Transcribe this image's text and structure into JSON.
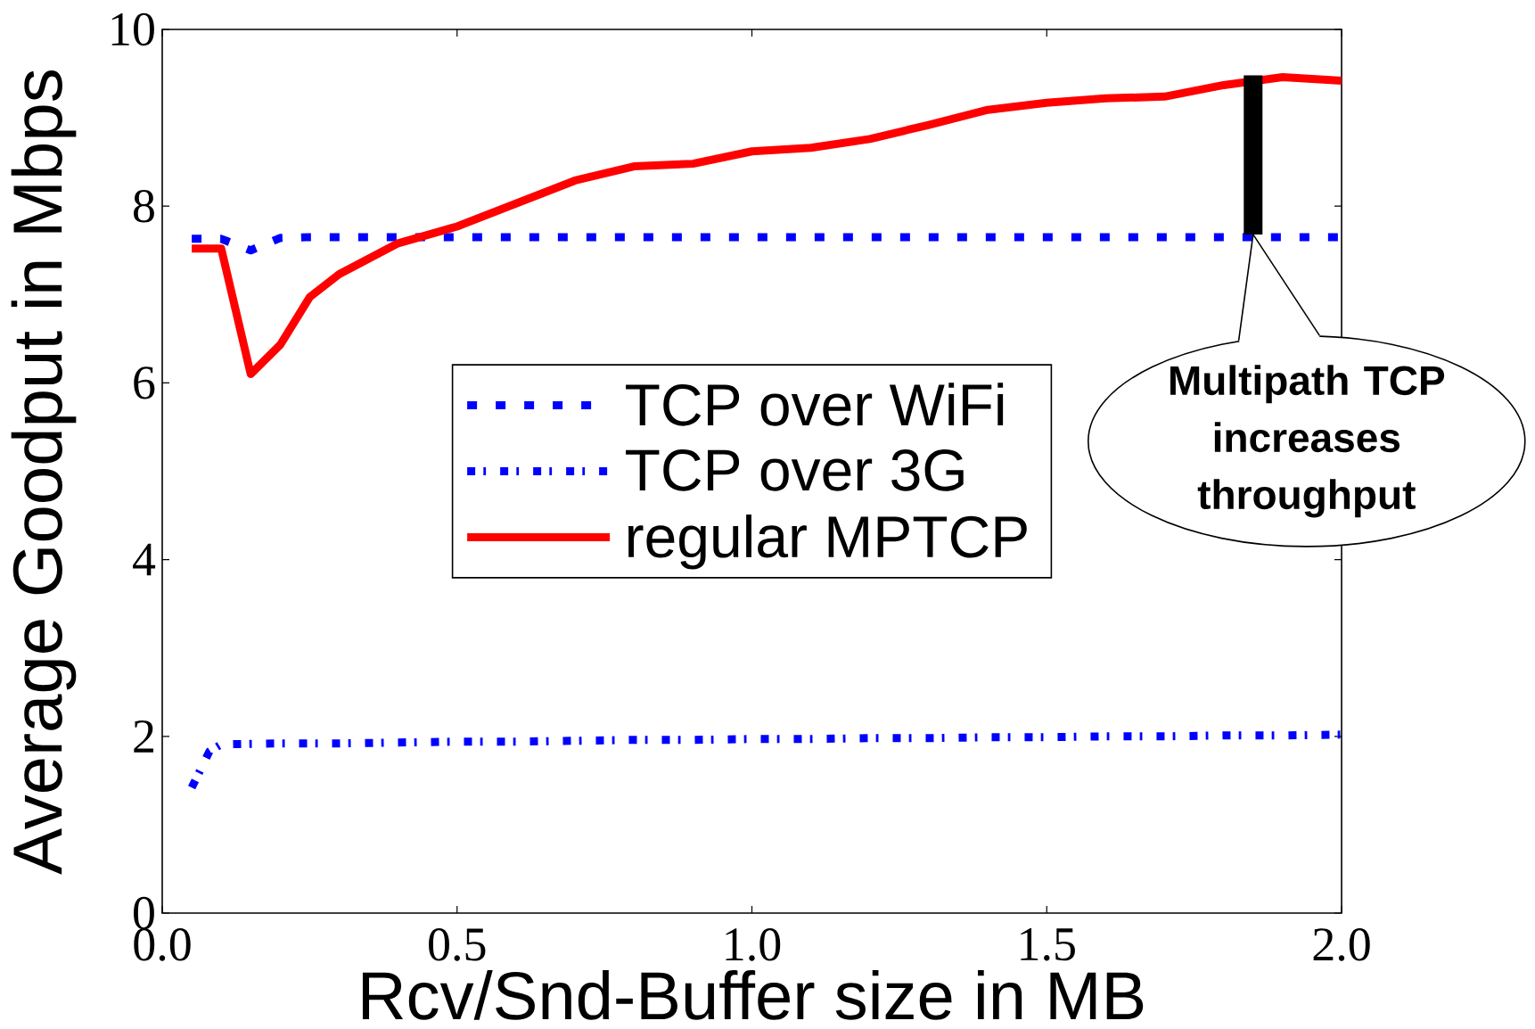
{
  "chart_data": {
    "type": "line",
    "xlabel": "Rcv/Snd-Buffer size in MB",
    "ylabel": "Average Goodput in Mbps",
    "xlim": [
      0,
      2
    ],
    "ylim": [
      0,
      10
    ],
    "xticks": [
      {
        "value": 0,
        "label": "0.0"
      },
      {
        "value": 0.5,
        "label": "0.5"
      },
      {
        "value": 1,
        "label": "1.0"
      },
      {
        "value": 1.5,
        "label": "1.5"
      },
      {
        "value": 2,
        "label": "2.0"
      }
    ],
    "yticks": [
      0,
      2,
      4,
      6,
      8,
      10
    ],
    "legend": "center",
    "series": [
      {
        "name": "TCP over WiFi",
        "color": "#0000ff",
        "line_style": "dashed",
        "x": [
          0.05,
          0.1,
          0.15,
          0.2,
          0.25,
          0.3,
          0.4,
          0.5,
          0.6,
          0.7,
          0.8,
          0.9,
          1.0,
          1.1,
          1.2,
          1.3,
          1.4,
          1.5,
          1.6,
          1.7,
          1.8,
          1.9,
          2.0
        ],
        "values": [
          7.63,
          7.63,
          7.5,
          7.64,
          7.65,
          7.65,
          7.65,
          7.65,
          7.65,
          7.65,
          7.65,
          7.65,
          7.65,
          7.65,
          7.65,
          7.65,
          7.65,
          7.65,
          7.65,
          7.65,
          7.65,
          7.65,
          7.65
        ]
      },
      {
        "name": "TCP over 3G",
        "color": "#0000ff",
        "line_style": "dotted",
        "x": [
          0.05,
          0.08,
          0.1,
          0.2,
          0.3,
          0.4,
          0.5,
          0.6,
          0.7,
          0.8,
          0.9,
          1.0,
          1.1,
          1.2,
          1.3,
          1.4,
          1.5,
          1.6,
          1.7,
          1.8,
          1.9,
          2.0
        ],
        "values": [
          1.42,
          1.83,
          1.91,
          1.92,
          1.92,
          1.93,
          1.94,
          1.94,
          1.95,
          1.96,
          1.96,
          1.97,
          1.97,
          1.98,
          1.98,
          1.99,
          1.99,
          2.0,
          2.0,
          2.01,
          2.01,
          2.02
        ]
      },
      {
        "name": "regular MPTCP",
        "color": "#ff0000",
        "line_style": "solid",
        "x": [
          0.05,
          0.1,
          0.15,
          0.2,
          0.25,
          0.3,
          0.4,
          0.5,
          0.6,
          0.7,
          0.8,
          0.9,
          1.0,
          1.1,
          1.2,
          1.3,
          1.4,
          1.5,
          1.6,
          1.7,
          1.8,
          1.9,
          2.0
        ],
        "values": [
          7.52,
          7.52,
          6.1,
          6.43,
          6.97,
          7.23,
          7.58,
          7.77,
          8.03,
          8.29,
          8.45,
          8.48,
          8.62,
          8.66,
          8.76,
          8.92,
          9.09,
          9.17,
          9.22,
          9.24,
          9.37,
          9.46,
          9.42
        ]
      },
      {
        "type": "bar",
        "color": "#000000",
        "x": [
          1.85
        ],
        "base": [
          7.68
        ],
        "values": [
          1.8
        ]
      }
    ],
    "annotations": [
      {
        "text": "Multipath TCP increases throughput",
        "x": 1.85,
        "y": 7.68
      }
    ]
  }
}
